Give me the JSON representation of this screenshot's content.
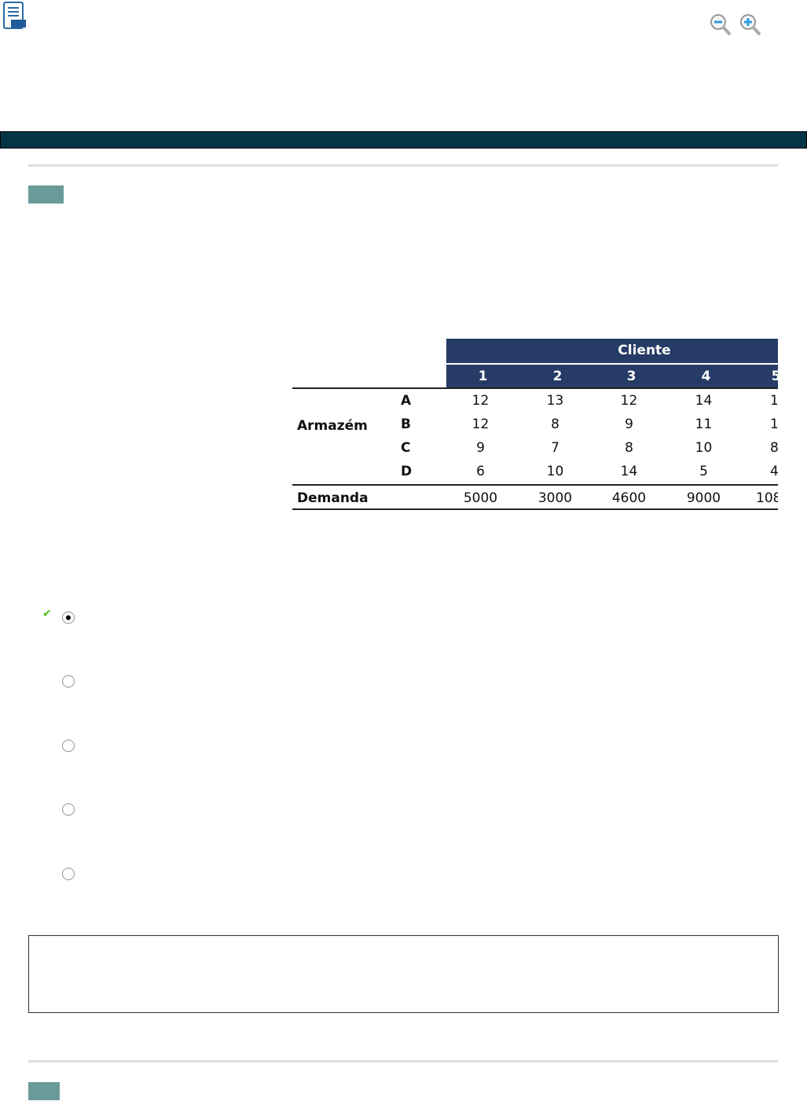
{
  "toolbar": {
    "icons": [
      "notes-icon",
      "zoom-out-icon",
      "zoom-in-icon"
    ]
  },
  "colors": {
    "header_bar": "#033547",
    "table_header": "#263b66",
    "question_badge": "#6a9a9a",
    "check": "#4cc21a"
  },
  "table": {
    "group_header": "Cliente",
    "columns": [
      "1",
      "2",
      "3",
      "4",
      "5"
    ],
    "row_group_label": "Armazém",
    "rows": [
      {
        "label": "A",
        "values": [
          "12",
          "13",
          "12",
          "14",
          "1"
        ]
      },
      {
        "label": "B",
        "values": [
          "12",
          "8",
          "9",
          "11",
          "1"
        ]
      },
      {
        "label": "C",
        "values": [
          "9",
          "7",
          "8",
          "10",
          "8"
        ]
      },
      {
        "label": "D",
        "values": [
          "6",
          "10",
          "14",
          "5",
          "4"
        ]
      }
    ],
    "demand": {
      "label": "Demanda",
      "values": [
        "5000",
        "3000",
        "4600",
        "9000",
        "108"
      ]
    }
  },
  "options": [
    {
      "selected": true,
      "correct": true
    },
    {
      "selected": false
    },
    {
      "selected": false
    },
    {
      "selected": false
    },
    {
      "selected": false
    }
  ]
}
